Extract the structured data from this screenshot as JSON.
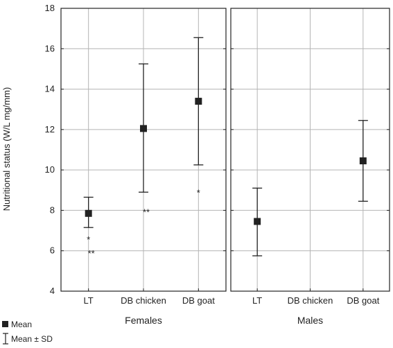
{
  "chart_data": {
    "type": "scatter",
    "ylabel": "Nutritional status (W/L mg/mm)",
    "ylim": [
      4,
      18
    ],
    "yticks": [
      4,
      6,
      8,
      10,
      12,
      14,
      16,
      18
    ],
    "grid": true,
    "legend_position": "bottom-left",
    "legend": [
      {
        "label": "Mean",
        "symbol": "square"
      },
      {
        "label": "Mean ± SD",
        "symbol": "errorbar"
      }
    ],
    "panels": [
      {
        "group": "Females",
        "categories": [
          "LT",
          "DB chicken",
          "DB goat"
        ],
        "mean": [
          7.85,
          12.05,
          13.4
        ],
        "sd_low": [
          7.15,
          8.9,
          10.25
        ],
        "sd_high": [
          8.65,
          15.25,
          16.55
        ],
        "annotations": [
          {
            "category": "LT",
            "text": "*",
            "y": 6.65
          },
          {
            "category": "LT",
            "text": "**",
            "y": 5.95
          },
          {
            "category": "DB chicken",
            "text": "**",
            "y": 8.0
          },
          {
            "category": "DB goat",
            "text": "*",
            "y": 8.95
          }
        ]
      },
      {
        "group": "Males",
        "categories": [
          "LT",
          "DB chicken",
          "DB goat"
        ],
        "mean": [
          7.45,
          null,
          10.45
        ],
        "sd_low": [
          5.75,
          null,
          8.45
        ],
        "sd_high": [
          9.1,
          null,
          12.45
        ],
        "annotations": []
      }
    ]
  },
  "colors": {
    "marker": "#222222",
    "grid": "#b4b4b4",
    "frame": "#222222",
    "text": "#222222"
  }
}
